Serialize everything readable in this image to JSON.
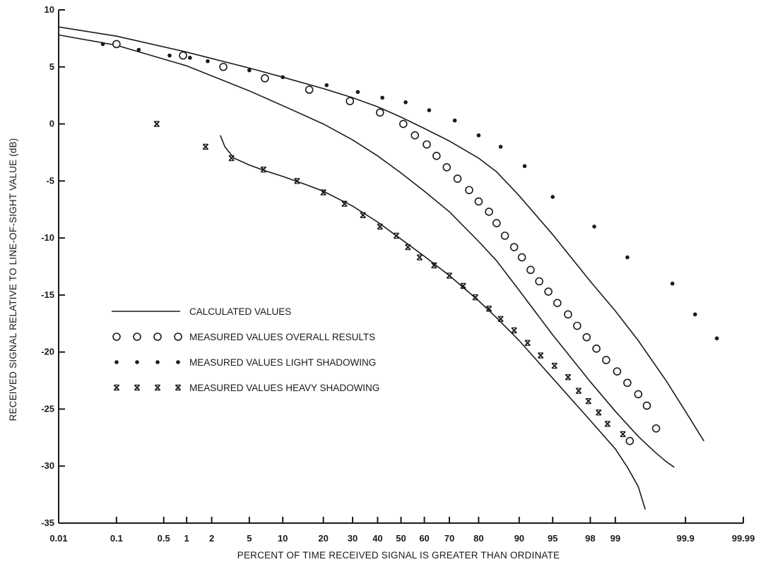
{
  "chart_data": {
    "type": "line",
    "title": "",
    "xlabel": "PERCENT OF TIME RECEIVED SIGNAL IS GREATER THAN ORDINATE",
    "ylabel": "RECEIVED SIGNAL RELATIVE TO LINE-OF-SIGHT VALUE (dB)",
    "x_scale": "normal-probability",
    "ylim": [
      -35,
      10
    ],
    "x_ticks": [
      0.01,
      0.1,
      0.5,
      1,
      2,
      5,
      10,
      20,
      30,
      40,
      50,
      60,
      70,
      80,
      90,
      95,
      98,
      99,
      99.9,
      99.99
    ],
    "x_tick_labels": [
      "0.01",
      "0.1",
      "0.5",
      "1",
      "2",
      "5",
      "10",
      "20",
      "30",
      "40",
      "50",
      "60",
      "70",
      "80",
      "90",
      "95",
      "98",
      "99",
      "99.9",
      "99.99"
    ],
    "y_ticks": [
      10,
      5,
      0,
      -5,
      -10,
      -15,
      -20,
      -25,
      -30,
      -35
    ],
    "y_tick_labels": [
      "10",
      "5",
      "0",
      "-5",
      "-10",
      "-15",
      "-20",
      "-25",
      "-30",
      "-35"
    ],
    "grid": false,
    "legend_position": "lower-left",
    "legend": [
      {
        "marker": "line",
        "markers_shown": 1,
        "label": "CALCULATED VALUES"
      },
      {
        "marker": "open-circle",
        "markers_shown": 4,
        "label": "MEASURED VALUES OVERALL RESULTS"
      },
      {
        "marker": "dot",
        "markers_shown": 4,
        "label": "MEASURED VALUES LIGHT SHADOWING"
      },
      {
        "marker": "x",
        "markers_shown": 4,
        "label": "MEASURED VALUES HEAVY SHADOWING"
      }
    ],
    "calculated_curves": [
      {
        "x": [
          0.01,
          0.1,
          1,
          5,
          10,
          20,
          30,
          40,
          50,
          60,
          70,
          80,
          85,
          90,
          95,
          98,
          99,
          99.5,
          99.8,
          99.9,
          99.95
        ],
        "y": [
          8.5,
          7.7,
          6.3,
          4.9,
          4.1,
          3.1,
          2.3,
          1.5,
          0.6,
          -0.4,
          -1.5,
          -3.0,
          -4.2,
          -6.3,
          -9.7,
          -13.8,
          -16.4,
          -19.0,
          -22.5,
          -25.2,
          -27.8
        ]
      },
      {
        "x": [
          0.01,
          0.1,
          1,
          5,
          10,
          20,
          30,
          40,
          50,
          60,
          70,
          80,
          85,
          90,
          95,
          98,
          99,
          99.5,
          99.7,
          99.8,
          99.85
        ],
        "y": [
          7.8,
          6.9,
          5.1,
          2.9,
          1.6,
          0.0,
          -1.4,
          -2.8,
          -4.3,
          -5.9,
          -7.7,
          -10.3,
          -12.0,
          -14.6,
          -18.5,
          -22.6,
          -25.2,
          -27.4,
          -28.7,
          -29.6,
          -30.1
        ]
      },
      {
        "x": [
          2.5,
          2.8,
          3.5,
          5,
          7,
          10,
          15,
          20,
          30,
          40,
          50,
          60,
          70,
          80,
          85,
          90,
          95,
          98,
          99,
          99.3,
          99.5,
          99.6
        ],
        "y": [
          -1.0,
          -2.0,
          -3.0,
          -3.6,
          -4.1,
          -4.6,
          -5.3,
          -5.9,
          -7.2,
          -8.6,
          -10.1,
          -11.6,
          -13.3,
          -15.5,
          -17.0,
          -19.0,
          -22.3,
          -26.0,
          -28.5,
          -30.1,
          -31.8,
          -33.8
        ]
      }
    ],
    "series": [
      {
        "name": "MEASURED VALUES OVERALL RESULTS",
        "marker": "open-circle",
        "x": [
          0.1,
          0.9,
          2.7,
          7,
          16,
          29,
          41,
          51,
          56,
          61,
          65,
          69,
          73,
          77,
          80,
          83,
          85,
          87,
          89,
          90.5,
          92,
          93.3,
          94.5,
          95.5,
          96.5,
          97.2,
          97.8,
          98.3,
          98.7,
          99.05,
          99.3,
          99.5,
          99.62,
          99.72
        ],
        "y": [
          7.0,
          6.0,
          5.0,
          4.0,
          3.0,
          2.0,
          1.0,
          0.0,
          -1.0,
          -1.8,
          -2.8,
          -3.8,
          -4.8,
          -5.8,
          -6.8,
          -7.7,
          -8.7,
          -9.8,
          -10.8,
          -11.7,
          -12.8,
          -13.8,
          -14.7,
          -15.7,
          -16.7,
          -17.7,
          -18.7,
          -19.7,
          -20.7,
          -21.7,
          -22.7,
          -23.7,
          -24.7,
          -26.7
        ]
      },
      {
        "name": "MEASURED VALUES LIGHT SHADOWING",
        "marker": "dot",
        "x": [
          0.06,
          0.22,
          0.6,
          1.1,
          1.8,
          5,
          10,
          21,
          32,
          42,
          52,
          62,
          72,
          80,
          86,
          91,
          95,
          98.2,
          99.3,
          99.84,
          99.93,
          99.97
        ],
        "y": [
          7.0,
          6.5,
          6.0,
          5.8,
          5.5,
          4.7,
          4.1,
          3.4,
          2.8,
          2.3,
          1.9,
          1.2,
          0.3,
          -1.0,
          -2.0,
          -3.7,
          -6.4,
          -9.0,
          -11.7,
          -14.0,
          -16.7,
          -18.8
        ]
      },
      {
        "name": "MEASURED VALUES HEAVY SHADOWING",
        "marker": "x",
        "x": [
          0.4,
          1.7,
          3.3,
          6.8,
          13,
          20,
          27,
          34,
          41,
          48,
          53,
          58,
          64,
          70,
          75,
          79,
          83,
          86,
          89,
          91.5,
          93.5,
          95.2,
          96.5,
          97.3,
          97.9,
          98.4,
          98.75
        ],
        "y": [
          0.0,
          -2.0,
          -3.0,
          -4.0,
          -5.0,
          -6.0,
          -7.0,
          -8.0,
          -9.0,
          -9.8,
          -10.8,
          -11.7,
          -12.4,
          -13.3,
          -14.2,
          -15.2,
          -16.2,
          -17.1,
          -18.1,
          -19.2,
          -20.3,
          -21.2,
          -22.2,
          -23.4,
          -24.3,
          -25.3,
          -26.3
        ]
      },
      {
        "name": "",
        "marker": "x",
        "x": [
          99.2
        ],
        "y": [
          -27.2
        ]
      },
      {
        "name": "",
        "marker": "open-circle",
        "x": [
          99.35
        ],
        "y": [
          -27.8
        ]
      }
    ]
  }
}
